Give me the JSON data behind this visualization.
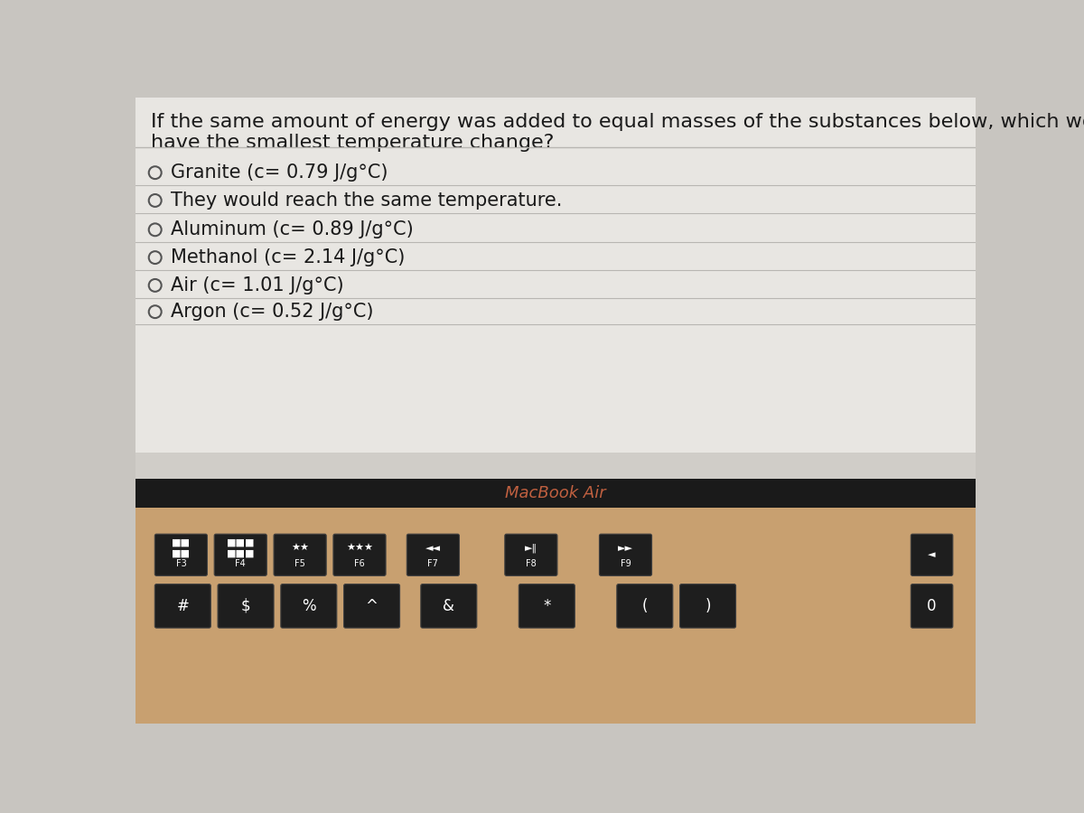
{
  "question_line1": "If the same amount of energy was added to equal masses of the substances below, which would",
  "question_line2": "have the smallest temperature change?",
  "options": [
    "Granite (c= 0.79 J/g°C)",
    "They would reach the same temperature.",
    "Aluminum (c= 0.89 J/g°C)",
    "Methanol (c= 2.14 J/g°C)",
    "Air (c= 1.01 J/g°C)",
    "Argon (c= 0.52 J/g°C)"
  ],
  "macbook_label": "MacBook Air",
  "bg_overall": "#c8c5c0",
  "bg_screen": "#d0cdc8",
  "bg_question_box": "#e8e6e2",
  "bg_black_bezel": "#1a1a1a",
  "bg_keyboard": "#c8a070",
  "divider_color": "#b8b6b2",
  "text_color": "#1a1a1a",
  "circle_color": "#555555",
  "macbook_color": "#c06040",
  "question_fontsize": 16,
  "option_fontsize": 15,
  "macbook_fontsize": 13,
  "key_color": "#1e1e1e",
  "key_text_color": "#ffffff"
}
